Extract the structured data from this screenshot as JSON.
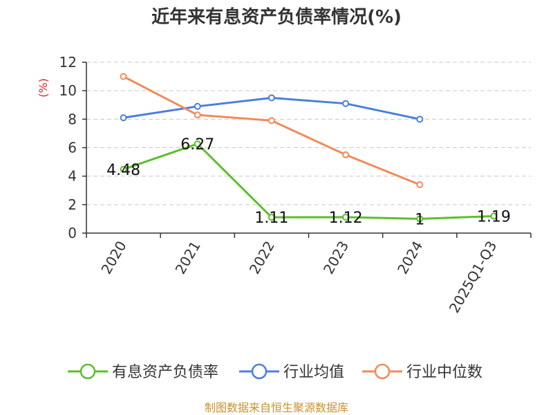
{
  "chart_data": {
    "type": "line",
    "title": "近年来有息资产负债率情况(%)",
    "ylabel": "(%)",
    "categories": [
      "2020",
      "2021",
      "2022",
      "2023",
      "2024",
      "2025Q1-Q3"
    ],
    "ylim": [
      0,
      12
    ],
    "yticks": [
      "0",
      "2",
      "4",
      "6",
      "8",
      "10",
      "12"
    ],
    "grid": true,
    "legend_position": "bottom",
    "series": [
      {
        "name": "有息资产负债率",
        "color": "#5cbf2a",
        "values": [
          4.48,
          6.27,
          1.11,
          1.12,
          1,
          1.19
        ],
        "labels": [
          "4.48",
          "6.27",
          "1.11",
          "1.12",
          "1",
          "1.19"
        ]
      },
      {
        "name": "行业均值",
        "color": "#4a7fdc",
        "values": [
          8.1,
          8.9,
          9.5,
          9.1,
          8.0,
          null
        ]
      },
      {
        "name": "行业中位数",
        "color": "#f28a5a",
        "values": [
          11.0,
          8.3,
          7.9,
          5.5,
          3.4,
          null
        ]
      }
    ],
    "source": "制图数据来自恒生聚源数据库"
  }
}
